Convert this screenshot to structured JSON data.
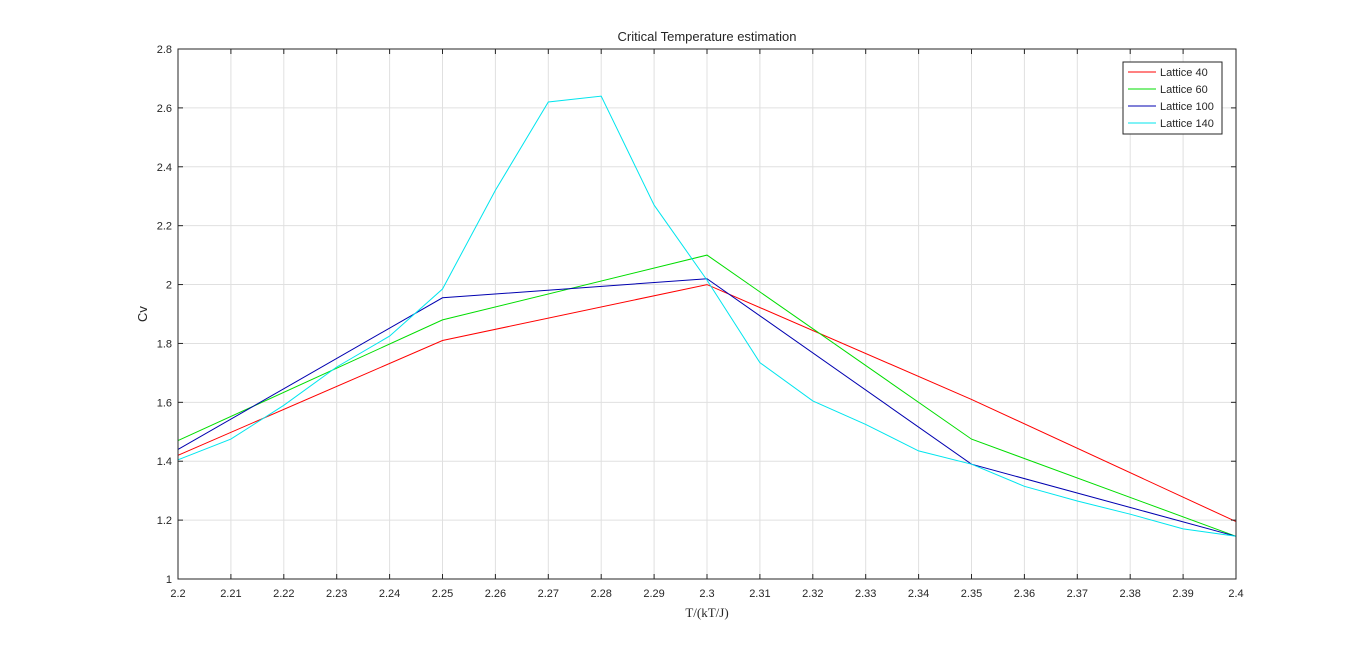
{
  "chart_data": {
    "type": "line",
    "title": "Critical Temperature estimation",
    "xlabel": "T/(kT/J)",
    "ylabel": "Cv",
    "xlim": [
      2.2,
      2.4
    ],
    "ylim": [
      1,
      2.8
    ],
    "xticks": [
      "2.2",
      "2.21",
      "2.22",
      "2.23",
      "2.24",
      "2.25",
      "2.26",
      "2.27",
      "2.28",
      "2.29",
      "2.3",
      "2.31",
      "2.32",
      "2.33",
      "2.34",
      "2.35",
      "2.36",
      "2.37",
      "2.38",
      "2.39",
      "2.4"
    ],
    "yticks": [
      "1",
      "1.2",
      "1.4",
      "1.6",
      "1.8",
      "2",
      "2.2",
      "2.4",
      "2.6",
      "2.8"
    ],
    "grid": true,
    "legend_position": "top-right",
    "series": [
      {
        "name": "Lattice 40",
        "color": "#ff0000",
        "points": [
          [
            2.2,
            1.42
          ],
          [
            2.25,
            1.81
          ],
          [
            2.3,
            2.0
          ],
          [
            2.35,
            1.61
          ],
          [
            2.4,
            1.195
          ]
        ]
      },
      {
        "name": "Lattice 60",
        "color": "#00dd00",
        "points": [
          [
            2.2,
            1.47
          ],
          [
            2.25,
            1.88
          ],
          [
            2.3,
            2.1
          ],
          [
            2.35,
            1.475
          ],
          [
            2.4,
            1.145
          ]
        ]
      },
      {
        "name": "Lattice 100",
        "color": "#0000b0",
        "points": [
          [
            2.2,
            1.44
          ],
          [
            2.25,
            1.955
          ],
          [
            2.3,
            2.02
          ],
          [
            2.35,
            1.39
          ],
          [
            2.4,
            1.145
          ]
        ]
      },
      {
        "name": "Lattice 140",
        "color": "#00e5ee",
        "points": [
          [
            2.2,
            1.405
          ],
          [
            2.21,
            1.475
          ],
          [
            2.22,
            1.59
          ],
          [
            2.23,
            1.72
          ],
          [
            2.24,
            1.825
          ],
          [
            2.25,
            1.985
          ],
          [
            2.26,
            2.32
          ],
          [
            2.27,
            2.62
          ],
          [
            2.28,
            2.64
          ],
          [
            2.29,
            2.27
          ],
          [
            2.3,
            2.015
          ],
          [
            2.31,
            1.735
          ],
          [
            2.32,
            1.605
          ],
          [
            2.33,
            1.525
          ],
          [
            2.34,
            1.435
          ],
          [
            2.35,
            1.39
          ],
          [
            2.36,
            1.315
          ],
          [
            2.37,
            1.265
          ],
          [
            2.38,
            1.22
          ],
          [
            2.39,
            1.17
          ],
          [
            2.4,
            1.145
          ]
        ]
      }
    ]
  }
}
